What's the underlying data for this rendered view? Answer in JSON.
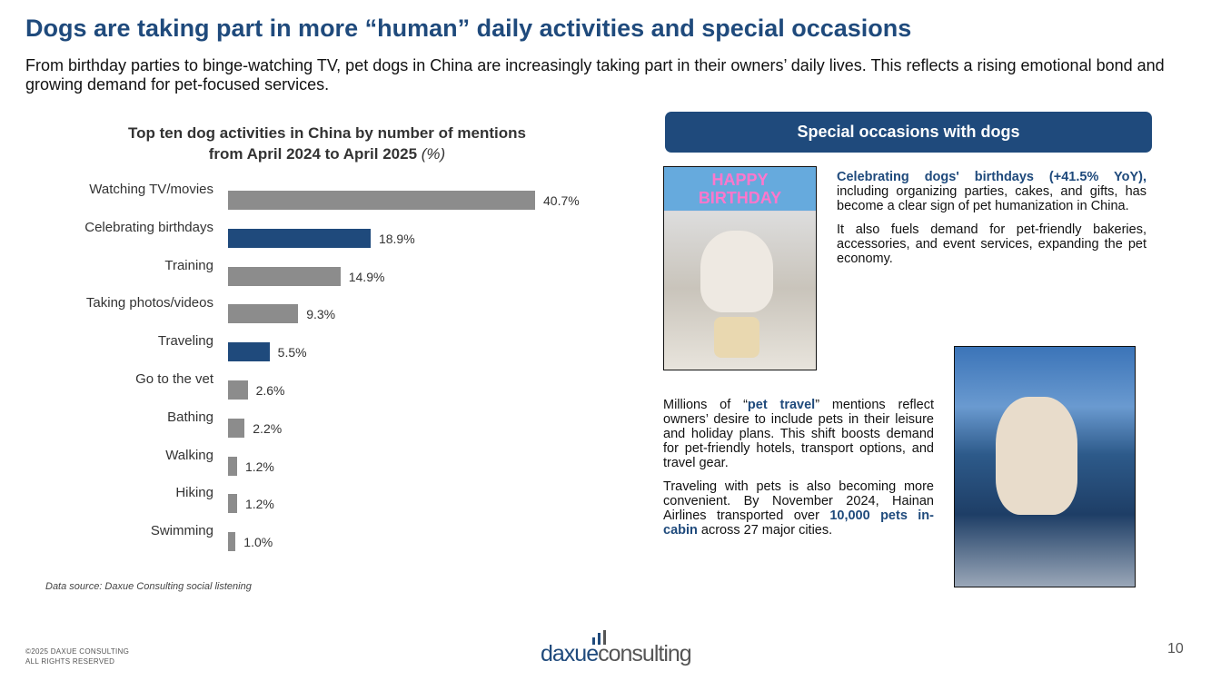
{
  "header": {
    "title": "Dogs are taking part in more “human” daily activities and special occasions",
    "subtitle": "From birthday parties to binge-watching TV, pet dogs in China are increasingly taking part in their owners’ daily lives. This reflects a rising emotional bond and growing demand for pet-focused services."
  },
  "chart_data": {
    "type": "bar",
    "orientation": "horizontal",
    "title_line1": "Top ten dog activities in China by number of mentions",
    "title_line2": "from April 2024 to April 2025",
    "title_unit": "(%)",
    "categories": [
      "Watching TV/movies",
      "Celebrating birthdays",
      "Training",
      "Taking photos/videos",
      "Traveling",
      "Go to the vet",
      "Bathing",
      "Walking",
      "Hiking",
      "Swimming"
    ],
    "values": [
      40.7,
      18.9,
      14.9,
      9.3,
      5.5,
      2.6,
      2.2,
      1.2,
      1.2,
      1.0
    ],
    "labels": [
      "40.7%",
      "18.9%",
      "14.9%",
      "9.3%",
      "5.5%",
      "2.6%",
      "2.2%",
      "1.2%",
      "1.2%",
      "1.0%"
    ],
    "highlighted": [
      false,
      true,
      false,
      false,
      true,
      false,
      false,
      false,
      false,
      false
    ],
    "colors": {
      "default": "#8c8c8c",
      "highlight": "#1f4a7c"
    },
    "xlim": [
      0,
      41
    ],
    "grid": false,
    "legend": "none",
    "source": "Data source: Daxue Consulting social listening"
  },
  "panel": {
    "banner": "Special occasions with dogs",
    "birthday": {
      "highlight": "Celebrating dogs' birthdays (+41.5% YoY),",
      "text": " including organizing parties, cakes, and gifts, has become a clear sign of pet humanization in China.",
      "text2": "It also fuels demand for pet-friendly bakeries, accessories, and event services, expanding the pet economy.",
      "image_text": "HAPPY BIRTHDAY"
    },
    "travel": {
      "t1": "Millions of “",
      "h1": "pet travel",
      "t2": "” mentions reflect owners’ desire to include pets in their leisure and holiday plans. This shift boosts demand for pet-friendly hotels, transport options, and travel gear.",
      "t3": "Traveling with pets is also becoming more convenient. By November 2024, Hainan Airlines transported over ",
      "h2": "10,000 pets in-cabin",
      "t4": " across 27 major cities."
    }
  },
  "footer": {
    "copyright_line1": "©2025 DAXUE CONSULTING",
    "copyright_line2": "ALL RIGHTS RESERVED",
    "logo_a": "daxue",
    "logo_b": "consulting",
    "page": "10"
  }
}
